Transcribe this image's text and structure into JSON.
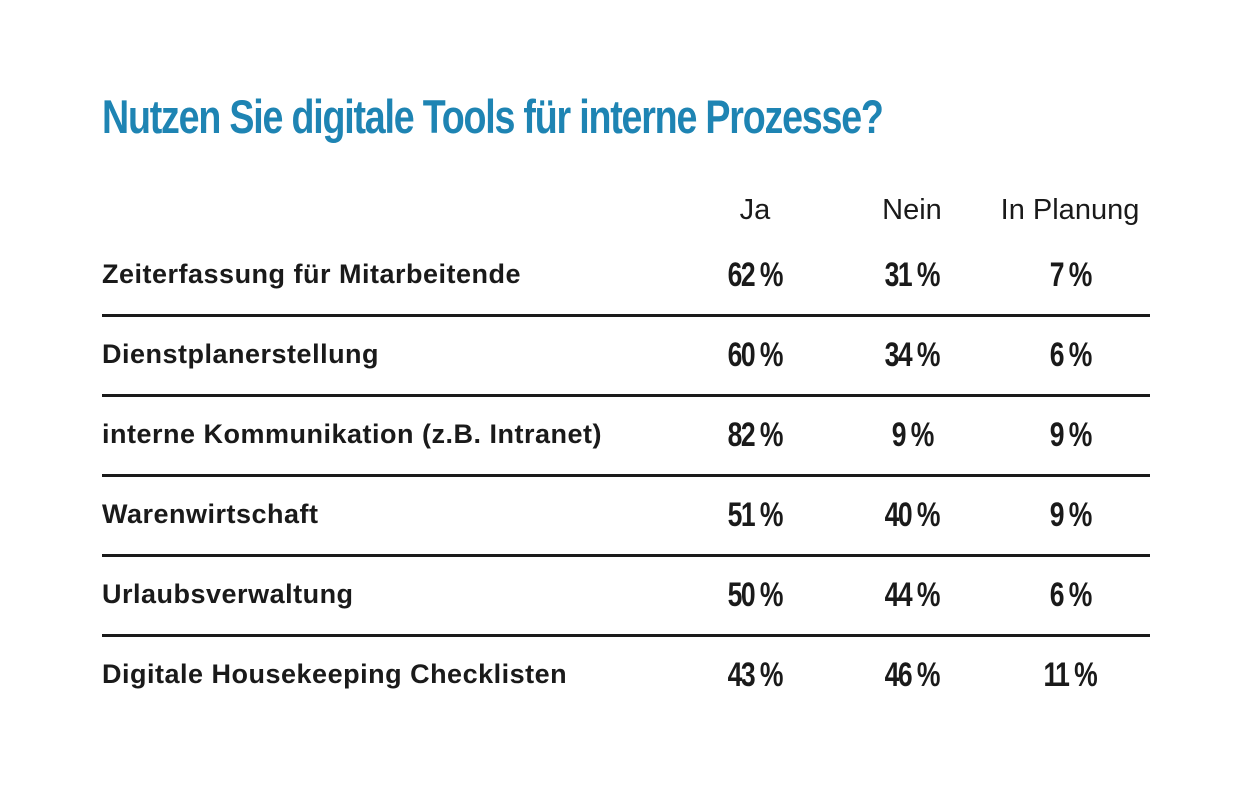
{
  "chart_data": {
    "type": "table",
    "title": "Nutzen Sie digitale Tools für interne Prozesse?",
    "columns": [
      "Ja",
      "Nein",
      "In Planung"
    ],
    "rows": [
      {
        "label": "Zeiterfassung für Mitarbeitende",
        "cells": [
          "62 %",
          "31 %",
          "7 %"
        ],
        "values": [
          62,
          31,
          7
        ]
      },
      {
        "label": "Dienstplanerstellung",
        "cells": [
          "60 %",
          "34 %",
          "6 %"
        ],
        "values": [
          60,
          34,
          6
        ]
      },
      {
        "label": "interne Kommunikation (z.B. Intranet)",
        "cells": [
          "82 %",
          "9 %",
          "9 %"
        ],
        "values": [
          82,
          9,
          9
        ]
      },
      {
        "label": "Warenwirtschaft",
        "cells": [
          "51 %",
          "40 %",
          "9 %"
        ],
        "values": [
          51,
          40,
          9
        ]
      },
      {
        "label": "Urlaubsverwaltung",
        "cells": [
          "50 %",
          "44 %",
          "6 %"
        ],
        "values": [
          50,
          44,
          6
        ]
      },
      {
        "label": "Digitale Housekeeping Checklisten",
        "cells": [
          "43 %",
          "46 %",
          "11 %"
        ],
        "values": [
          43,
          46,
          11
        ]
      }
    ],
    "colors": {
      "title": "#1e84b3",
      "text": "#1a1a1a",
      "divider": "#1a1a1a"
    }
  }
}
